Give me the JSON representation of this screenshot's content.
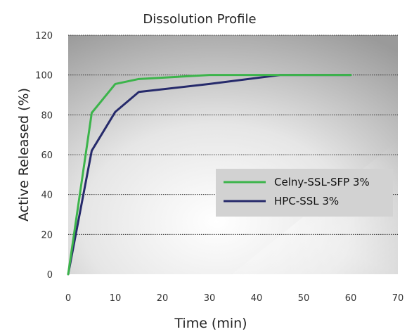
{
  "chart_data": {
    "type": "line",
    "title": "Dissolution Profile",
    "xlabel": "Time (min)",
    "ylabel": "Active Released (%)",
    "xlim": [
      0,
      70
    ],
    "ylim": [
      0,
      120
    ],
    "xticks": [
      0,
      10,
      20,
      30,
      40,
      50,
      60,
      70
    ],
    "yticks": [
      0,
      20,
      40,
      60,
      80,
      100,
      120
    ],
    "grid": true,
    "legend_position": "center-right",
    "series": [
      {
        "name": "Celny-SSL-SFP 3%",
        "color": "#3cb44b",
        "x": [
          0,
          5,
          10,
          15,
          30,
          45,
          60
        ],
        "y": [
          0,
          81,
          95.5,
          98,
          100,
          100,
          100
        ]
      },
      {
        "name": "HPC-SSL 3%",
        "color": "#262a6b",
        "x": [
          0,
          5,
          10,
          15,
          30,
          45,
          60
        ],
        "y": [
          0,
          62,
          81.5,
          91.5,
          95.5,
          100,
          100
        ]
      }
    ]
  }
}
